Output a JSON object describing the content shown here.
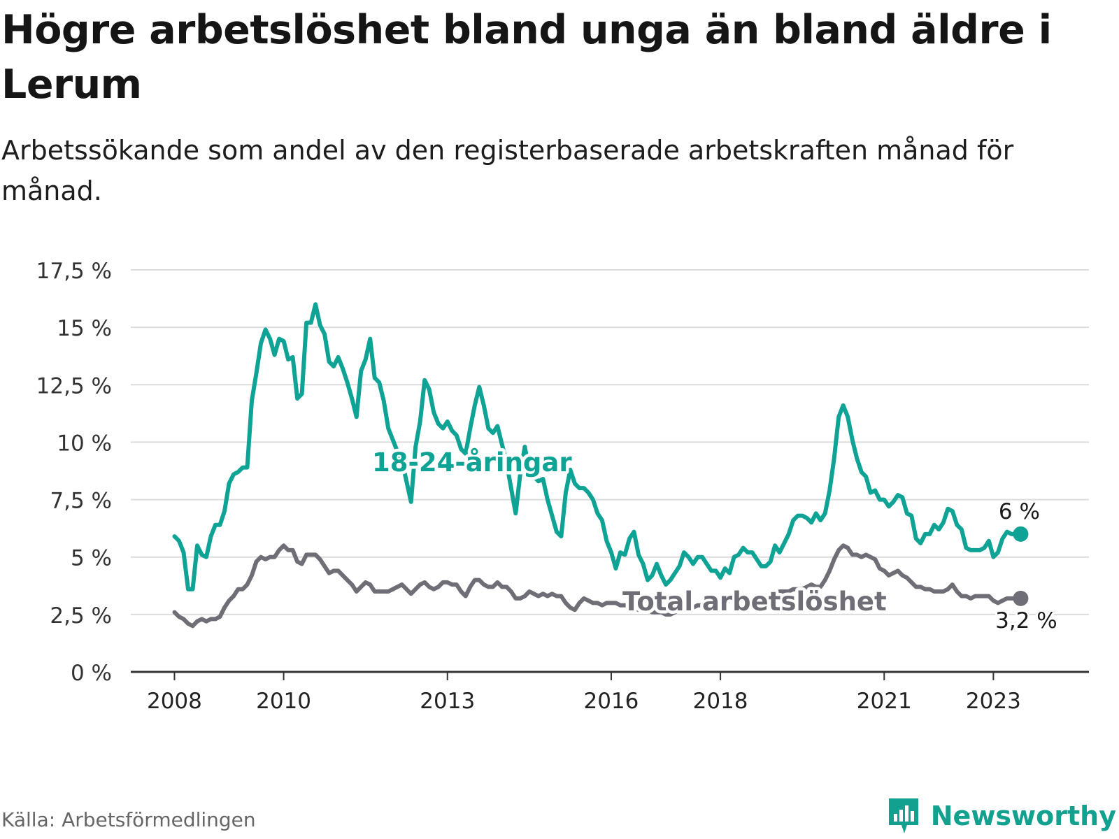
{
  "title": "Högre arbetslöshet bland unga än bland äldre i Lerum",
  "subtitle": "Arbetssökande som andel av den registerbaserade arbetskraften månad för månad.",
  "source": "Källa: Arbetsförmedlingen",
  "brand": "Newsworthy",
  "colors": {
    "youth": "#0fa395",
    "total": "#6f6e77",
    "grid": "#dcdcdc",
    "axis": "#333333",
    "brand": "#12a08f"
  },
  "chart_data": {
    "type": "line",
    "title": "Högre arbetslöshet bland unga än bland äldre i Lerum",
    "ylim": [
      0,
      17.5
    ],
    "xlim": [
      2007.2,
      2024.75
    ],
    "yticks": [
      0,
      2.5,
      5,
      7.5,
      10,
      12.5,
      15,
      17.5
    ],
    "ytick_labels": [
      "0 %",
      "2,5 %",
      "5 %",
      "7,5 %",
      "10 %",
      "12,5 %",
      "15 %",
      "17,5 %"
    ],
    "xticks": [
      2008,
      2010,
      2013,
      2016,
      2018,
      2021,
      2023
    ],
    "xtick_labels": [
      "2008",
      "2010",
      "2013",
      "2016",
      "2018",
      "2021",
      "2023"
    ],
    "start_year": 2008,
    "step_months": 1,
    "series": [
      {
        "name": "18-24-åringar",
        "label": "18-24-åringar",
        "end_label": "6 %",
        "values": [
          5.9,
          5.7,
          5.2,
          3.6,
          3.6,
          5.5,
          5.1,
          5.0,
          5.9,
          6.4,
          6.4,
          7.0,
          8.2,
          8.6,
          8.7,
          8.9,
          8.9,
          11.8,
          13.0,
          14.3,
          14.9,
          14.5,
          13.8,
          14.5,
          14.4,
          13.6,
          13.7,
          11.9,
          12.1,
          15.2,
          15.2,
          16.0,
          15.1,
          14.7,
          13.5,
          13.3,
          13.7,
          13.2,
          12.6,
          11.9,
          11.1,
          13.1,
          13.6,
          14.5,
          12.8,
          12.6,
          11.8,
          10.6,
          10.1,
          9.6,
          9.2,
          8.3,
          7.4,
          9.8,
          10.9,
          12.7,
          12.3,
          11.3,
          10.8,
          10.6,
          10.9,
          10.5,
          10.3,
          9.7,
          9.5,
          10.6,
          11.6,
          12.4,
          11.6,
          10.6,
          10.4,
          10.7,
          9.9,
          9.1,
          8.0,
          6.9,
          8.6,
          9.8,
          8.7,
          8.5,
          8.3,
          8.4,
          7.5,
          6.8,
          6.1,
          5.9,
          7.8,
          8.8,
          8.2,
          8.0,
          8.0,
          7.8,
          7.5,
          6.9,
          6.6,
          5.7,
          5.2,
          4.5,
          5.2,
          5.1,
          5.8,
          6.1,
          5.1,
          4.7,
          4.0,
          4.2,
          4.7,
          4.2,
          3.8,
          4.0,
          4.3,
          4.6,
          5.2,
          5.0,
          4.7,
          5.0,
          5.0,
          4.7,
          4.4,
          4.4,
          4.1,
          4.5,
          4.3,
          5.0,
          5.1,
          5.4,
          5.2,
          5.2,
          4.9,
          4.6,
          4.6,
          4.8,
          5.5,
          5.2,
          5.6,
          6.0,
          6.6,
          6.8,
          6.8,
          6.7,
          6.5,
          6.9,
          6.6,
          6.9,
          7.9,
          9.3,
          11.1,
          11.6,
          11.1,
          10.1,
          9.3,
          8.7,
          8.5,
          7.8,
          7.9,
          7.5,
          7.5,
          7.2,
          7.4,
          7.7,
          7.6,
          6.9,
          6.8,
          5.8,
          5.6,
          6.0,
          6.0,
          6.4,
          6.2,
          6.5,
          7.1,
          7.0,
          6.4,
          6.2,
          5.4,
          5.3,
          5.3,
          5.3,
          5.4,
          5.7,
          5.0,
          5.2,
          5.8,
          6.1,
          6.0,
          6.0,
          6.0
        ]
      },
      {
        "name": "Total arbetslöshet",
        "label": "Total arbetslöshet",
        "end_label": "3,2 %",
        "values": [
          2.6,
          2.4,
          2.3,
          2.1,
          2.0,
          2.2,
          2.3,
          2.2,
          2.3,
          2.3,
          2.4,
          2.8,
          3.1,
          3.3,
          3.6,
          3.6,
          3.8,
          4.2,
          4.8,
          5.0,
          4.9,
          5.0,
          5.0,
          5.3,
          5.5,
          5.3,
          5.3,
          4.8,
          4.7,
          5.1,
          5.1,
          5.1,
          4.9,
          4.6,
          4.3,
          4.4,
          4.4,
          4.2,
          4.0,
          3.8,
          3.5,
          3.7,
          3.9,
          3.8,
          3.5,
          3.5,
          3.5,
          3.5,
          3.6,
          3.7,
          3.8,
          3.6,
          3.4,
          3.6,
          3.8,
          3.9,
          3.7,
          3.6,
          3.7,
          3.9,
          3.9,
          3.8,
          3.8,
          3.5,
          3.3,
          3.7,
          4.0,
          4.0,
          3.8,
          3.7,
          3.7,
          3.9,
          3.7,
          3.7,
          3.5,
          3.2,
          3.2,
          3.3,
          3.5,
          3.4,
          3.3,
          3.4,
          3.3,
          3.4,
          3.3,
          3.3,
          3.0,
          2.8,
          2.7,
          3.0,
          3.2,
          3.1,
          3.0,
          3.0,
          2.9,
          3.0,
          3.0,
          3.0,
          2.9,
          2.9,
          2.9,
          2.8,
          2.7,
          2.7,
          2.7,
          2.6,
          2.6,
          2.6,
          2.5,
          2.5,
          2.6,
          2.7,
          2.8,
          2.8,
          2.8,
          2.9,
          2.9,
          2.9,
          2.9,
          3.0,
          3.0,
          3.1,
          3.1,
          3.2,
          3.2,
          3.2,
          3.2,
          3.2,
          3.3,
          3.3,
          3.3,
          3.3,
          3.4,
          3.5,
          3.5,
          3.5,
          3.6,
          3.6,
          3.6,
          3.7,
          3.8,
          3.7,
          3.7,
          4.0,
          4.4,
          4.9,
          5.3,
          5.5,
          5.4,
          5.1,
          5.1,
          5.0,
          5.1,
          5.0,
          4.9,
          4.5,
          4.4,
          4.2,
          4.3,
          4.4,
          4.2,
          4.1,
          3.9,
          3.7,
          3.7,
          3.6,
          3.6,
          3.5,
          3.5,
          3.5,
          3.6,
          3.8,
          3.5,
          3.3,
          3.3,
          3.2,
          3.3,
          3.3,
          3.3,
          3.3,
          3.1,
          3.0,
          3.1,
          3.2,
          3.2,
          3.2,
          3.2
        ]
      }
    ]
  }
}
